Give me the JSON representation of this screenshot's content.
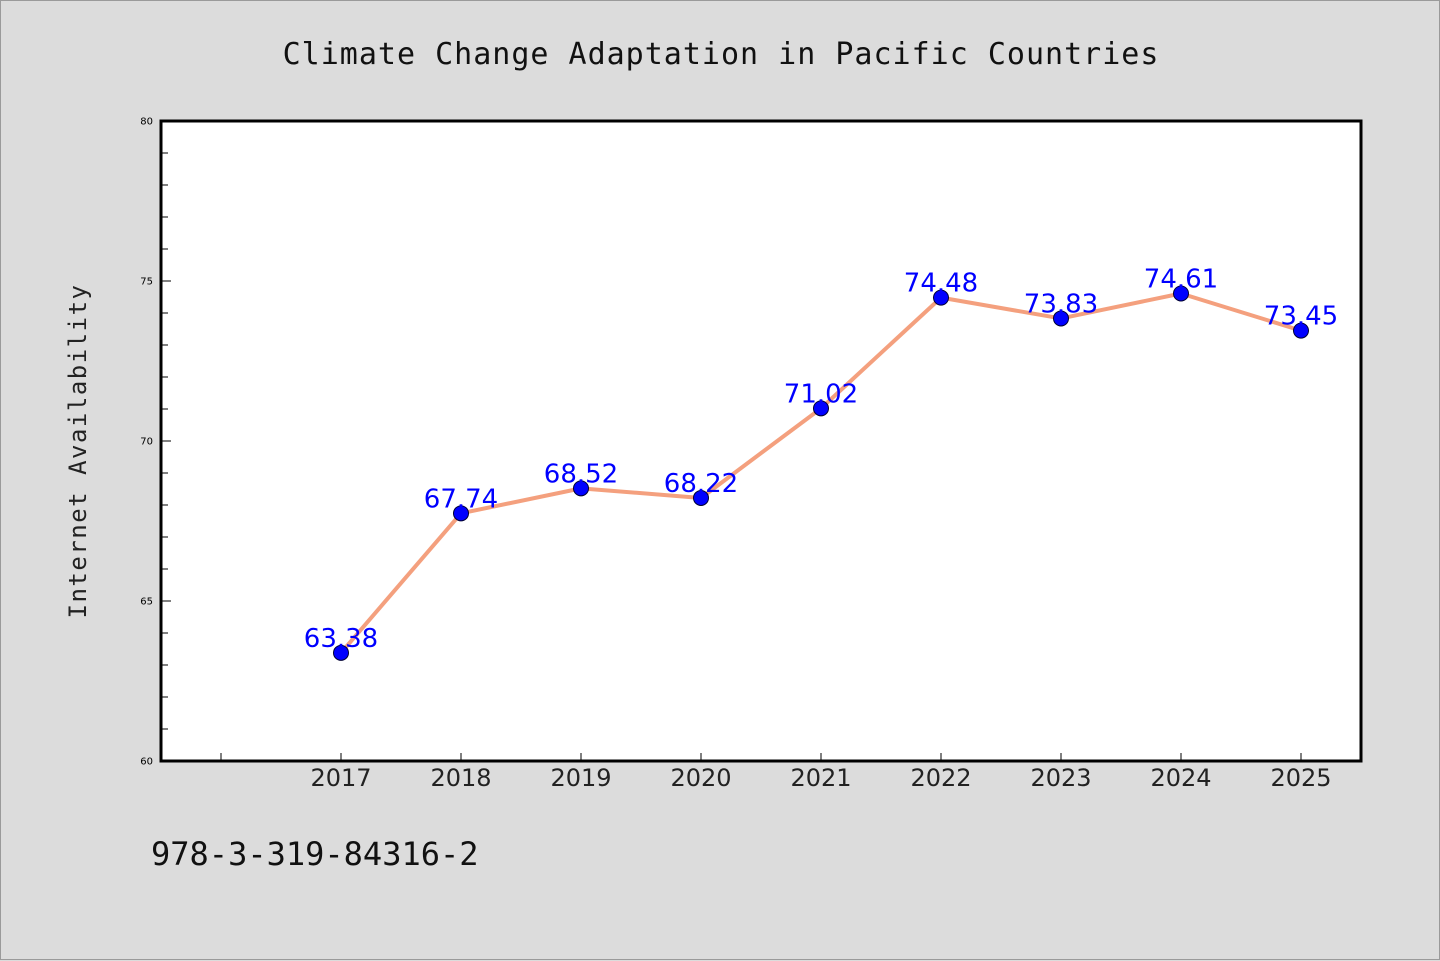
{
  "chart_data": {
    "type": "line",
    "title": "Climate Change Adaptation in Pacific Countries",
    "ylabel": "Internet Availability",
    "x": [
      "2017",
      "2018",
      "2019",
      "2020",
      "2021",
      "2022",
      "2023",
      "2024",
      "2025"
    ],
    "series": [
      {
        "values": [
          63.38,
          67.74,
          68.52,
          68.22,
          71.02,
          74.48,
          73.83,
          74.61,
          73.45
        ]
      }
    ],
    "data_labels": [
      "63.38",
      "67.74",
      "68.52",
      "68.22",
      "71.02",
      "74.48",
      "73.83",
      "74.61",
      "73.45"
    ],
    "ylim": [
      60,
      80
    ],
    "yticks": [
      "60",
      "65",
      "70",
      "75",
      "80"
    ],
    "grid": false,
    "line_color": "#f4a07e",
    "marker_color": "#0000ff",
    "label_color": "#0000ff"
  },
  "footer": {
    "code": "978-3-319-84316-2"
  }
}
